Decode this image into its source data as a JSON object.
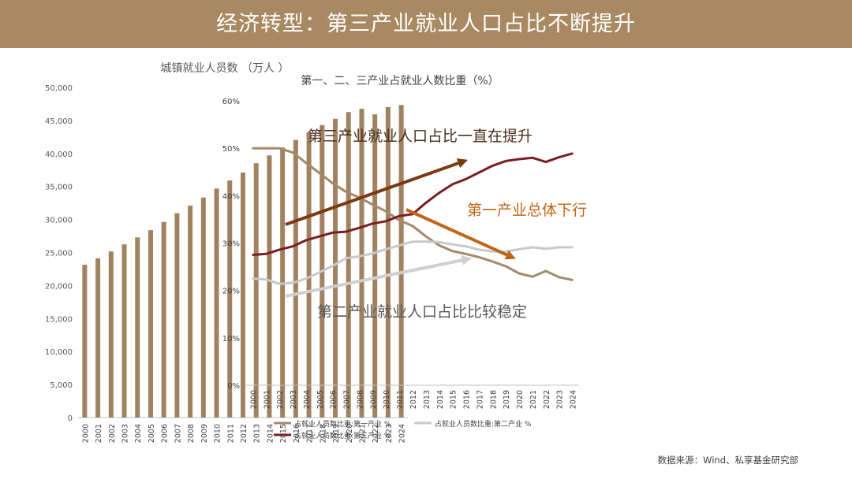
{
  "header": {
    "title": "经济转型：第三产业就业人口占比不断提升"
  },
  "colors": {
    "banner": "#a98961",
    "bar": "#a08260",
    "primary": "#a38a6a",
    "secondary": "#c9c9c9",
    "tertiary": "#7b1e22",
    "arrow_tertiary": "#7a3b12",
    "arrow_primary": "#c0661a",
    "annot_primary": "#c0661a",
    "annot_tertiary": "#4a2c1a",
    "annot_secondary": "#595959"
  },
  "chart_data": [
    {
      "type": "bar",
      "title": "城镇就业人员数 （万人 ）",
      "categories": [
        "2000",
        "2001",
        "2002",
        "2003",
        "2004",
        "2005",
        "2006",
        "2007",
        "2008",
        "2009",
        "2010",
        "2011",
        "2012",
        "2013",
        "2014",
        "2015",
        "2016",
        "2017",
        "2018",
        "2019",
        "2020",
        "2021",
        "2022",
        "2023",
        "2024"
      ],
      "values": [
        23151,
        24123,
        25159,
        26230,
        27293,
        28389,
        29630,
        30953,
        32103,
        33322,
        34687,
        35914,
        37102,
        38527,
        39703,
        40916,
        42051,
        43208,
        44292,
        45249,
        46271,
        46773,
        45931,
        47032,
        47345
      ],
      "ylim": [
        0,
        50000
      ],
      "yticks": [
        "0",
        "5,000",
        "10,000",
        "15,000",
        "20,000",
        "25,000",
        "30,000",
        "35,000",
        "40,000",
        "45,000",
        "50,000"
      ],
      "xlabel": "",
      "ylabel": ""
    },
    {
      "type": "line",
      "title": "第一、二、三产业占就业人数比重（%）",
      "x": [
        "2000",
        "2001",
        "2002",
        "2003",
        "2004",
        "2005",
        "2006",
        "2007",
        "2008",
        "2009",
        "2010",
        "2011",
        "2012",
        "2013",
        "2014",
        "2015",
        "2016",
        "2017",
        "2018",
        "2019",
        "2020",
        "2021",
        "2022",
        "2023",
        "2024"
      ],
      "ylim": [
        0,
        60
      ],
      "yticks": [
        "0%",
        "10%",
        "20%",
        "30%",
        "40%",
        "50%",
        "60%"
      ],
      "series": [
        {
          "name": "占就业人员数比重:第一产业 %",
          "color_key": "primary",
          "values": [
            50.0,
            50.0,
            50.0,
            49.1,
            46.9,
            44.8,
            42.6,
            40.8,
            39.6,
            38.1,
            36.7,
            34.8,
            33.6,
            31.4,
            29.5,
            28.3,
            27.7,
            27.0,
            26.1,
            25.1,
            23.6,
            22.9,
            24.1,
            22.8,
            22.2
          ]
        },
        {
          "name": "占就业人员数比重:第二产业 %",
          "color_key": "secondary",
          "values": [
            22.5,
            22.3,
            21.4,
            21.6,
            22.5,
            23.8,
            25.2,
            26.8,
            27.2,
            27.8,
            28.7,
            29.5,
            30.3,
            30.3,
            30.2,
            29.7,
            29.3,
            28.6,
            28.2,
            28.2,
            28.7,
            29.1,
            28.8,
            29.1,
            29.1
          ]
        },
        {
          "name": "占就业人员数比重:第三产业 %",
          "color_key": "tertiary",
          "values": [
            27.5,
            27.7,
            28.6,
            29.3,
            30.6,
            31.4,
            32.2,
            32.4,
            33.2,
            34.1,
            34.6,
            35.7,
            36.1,
            38.5,
            40.6,
            42.4,
            43.5,
            44.9,
            46.3,
            47.3,
            47.7,
            48.0,
            47.1,
            48.1,
            48.9
          ]
        }
      ],
      "annotations": {
        "tertiary": "第三产业就业人口占比一直在提升",
        "primary": "第一产业总体下行",
        "secondary": "第二产业就业人口占比比较稳定"
      }
    }
  ],
  "footer": {
    "source": "数据来源：Wind、私享基金研究部"
  }
}
